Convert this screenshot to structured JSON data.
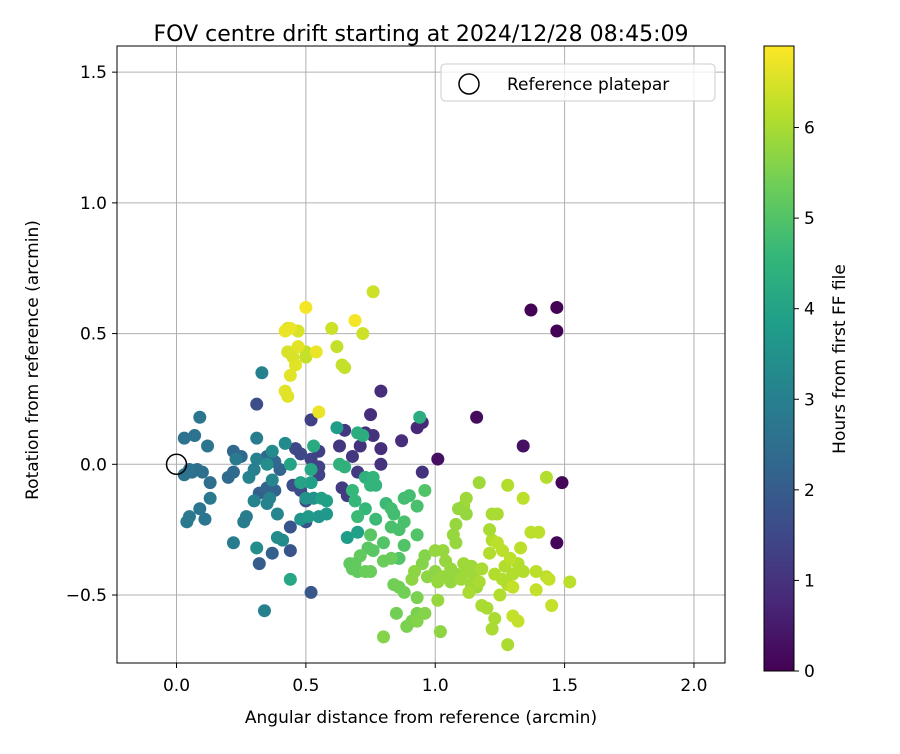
{
  "chart_data": {
    "type": "scatter",
    "title": "FOV centre drift starting at 2024/12/28 08:45:09",
    "xlabel": "Angular distance from reference (arcmin)",
    "ylabel": "Rotation from reference (arcmin)",
    "xlim": [
      -0.23,
      2.12
    ],
    "ylim": [
      -0.76,
      1.6
    ],
    "x_ticks": [
      0.0,
      0.5,
      1.0,
      1.5,
      2.0
    ],
    "x_tick_labels": [
      "0.0",
      "0.5",
      "1.0",
      "1.5",
      "2.0"
    ],
    "y_ticks": [
      -0.5,
      0.0,
      0.5,
      1.0,
      1.5
    ],
    "y_tick_labels": [
      "−0.5",
      "0.0",
      "0.5",
      "1.0",
      "1.5"
    ],
    "grid": true,
    "legend": {
      "placement": "top-right",
      "entries": [
        {
          "label": "Reference platepar",
          "marker": "open-circle"
        }
      ]
    },
    "reference_point": {
      "x": 0.0,
      "y": 0.0
    },
    "colorbar": {
      "label": "Hours from first FF file",
      "colormap": "viridis",
      "min": 0,
      "max": 6.9,
      "ticks": [
        0,
        1,
        2,
        3,
        4,
        5,
        6
      ],
      "tick_labels": [
        "0",
        "1",
        "2",
        "3",
        "4",
        "5",
        "6"
      ]
    },
    "colormap_stops": [
      "#440154",
      "#482878",
      "#3e4a89",
      "#31688e",
      "#26828e",
      "#1f9e89",
      "#35b779",
      "#6ece58",
      "#b5de2b",
      "#fde725"
    ],
    "points": [
      [
        1.37,
        0.59,
        0.05
      ],
      [
        1.47,
        0.6,
        0.05
      ],
      [
        1.47,
        0.51,
        0.05
      ],
      [
        1.49,
        -0.07,
        0.1
      ],
      [
        1.47,
        -0.3,
        0.1
      ],
      [
        1.16,
        0.18,
        0.2
      ],
      [
        1.34,
        0.07,
        0.3
      ],
      [
        1.01,
        0.02,
        0.3
      ],
      [
        0.95,
        0.16,
        0.8
      ],
      [
        0.93,
        0.14,
        0.8
      ],
      [
        0.79,
        0.28,
        0.9
      ],
      [
        0.75,
        0.19,
        0.9
      ],
      [
        0.87,
        0.09,
        0.9
      ],
      [
        0.79,
        0.06,
        0.9
      ],
      [
        0.79,
        0.0,
        1.0
      ],
      [
        0.73,
        0.12,
        1.0
      ],
      [
        0.76,
        0.11,
        1.0
      ],
      [
        0.71,
        0.07,
        1.0
      ],
      [
        0.65,
        0.13,
        1.1
      ],
      [
        0.63,
        0.07,
        1.1
      ],
      [
        0.68,
        0.03,
        1.1
      ],
      [
        0.7,
        -0.03,
        1.2
      ],
      [
        0.64,
        -0.09,
        1.2
      ],
      [
        0.66,
        -0.12,
        1.2
      ],
      [
        0.95,
        -0.03,
        1.0
      ],
      [
        0.52,
        0.17,
        1.3
      ],
      [
        0.55,
        0.05,
        1.3
      ],
      [
        0.55,
        -0.01,
        1.4
      ],
      [
        0.55,
        -0.04,
        1.4
      ],
      [
        0.52,
        0.02,
        1.4
      ],
      [
        0.46,
        0.06,
        1.5
      ],
      [
        0.48,
        0.04,
        1.5
      ],
      [
        0.45,
        -0.08,
        1.6
      ],
      [
        0.48,
        -0.1,
        1.6
      ],
      [
        0.5,
        -0.14,
        1.6
      ],
      [
        0.5,
        -0.22,
        1.7
      ],
      [
        0.44,
        -0.24,
        1.8
      ],
      [
        0.44,
        -0.33,
        1.8
      ],
      [
        0.31,
        0.23,
        1.6
      ],
      [
        0.52,
        -0.49,
        1.9
      ],
      [
        0.32,
        -0.38,
        2.0
      ],
      [
        0.37,
        -0.34,
        2.1
      ],
      [
        0.32,
        -0.11,
        2.1
      ],
      [
        0.35,
        -0.09,
        2.2
      ],
      [
        0.38,
        -0.1,
        2.2
      ],
      [
        0.4,
        -0.02,
        2.2
      ],
      [
        0.35,
        0.03,
        2.3
      ],
      [
        0.38,
        0.01,
        2.3
      ],
      [
        0.22,
        0.05,
        2.3
      ],
      [
        0.25,
        0.03,
        2.4
      ],
      [
        0.2,
        -0.05,
        2.4
      ],
      [
        0.22,
        -0.03,
        2.4
      ],
      [
        0.13,
        -0.07,
        2.5
      ],
      [
        0.1,
        -0.03,
        2.5
      ],
      [
        0.08,
        -0.02,
        2.5
      ],
      [
        0.06,
        -0.03,
        2.5
      ],
      [
        0.03,
        -0.04,
        2.6
      ],
      [
        0.05,
        -0.02,
        2.6
      ],
      [
        0.03,
        0.1,
        2.6
      ],
      [
        0.07,
        0.11,
        2.6
      ],
      [
        0.09,
        0.18,
        2.7
      ],
      [
        0.12,
        0.07,
        2.7
      ],
      [
        0.09,
        -0.17,
        2.7
      ],
      [
        0.11,
        -0.21,
        2.7
      ],
      [
        0.13,
        -0.13,
        2.8
      ],
      [
        0.05,
        -0.2,
        2.8
      ],
      [
        0.04,
        -0.22,
        2.8
      ],
      [
        0.23,
        0.02,
        2.8
      ],
      [
        0.22,
        -0.3,
        2.9
      ],
      [
        0.27,
        -0.2,
        2.9
      ],
      [
        0.26,
        -0.22,
        2.9
      ],
      [
        0.31,
        0.1,
        2.9
      ],
      [
        0.33,
        0.35,
        3.0
      ],
      [
        0.34,
        -0.56,
        3.0
      ],
      [
        0.31,
        0.02,
        3.0
      ],
      [
        0.3,
        -0.02,
        3.0
      ],
      [
        0.28,
        -0.05,
        3.1
      ],
      [
        0.3,
        -0.14,
        3.1
      ],
      [
        0.35,
        -0.15,
        3.1
      ],
      [
        0.36,
        -0.13,
        3.1
      ],
      [
        0.37,
        -0.06,
        3.2
      ],
      [
        0.39,
        -0.19,
        3.2
      ],
      [
        0.39,
        -0.28,
        3.3
      ],
      [
        0.41,
        -0.29,
        3.3
      ],
      [
        0.42,
        0.08,
        3.3
      ],
      [
        0.37,
        0.05,
        3.3
      ],
      [
        0.35,
        0.0,
        3.4
      ],
      [
        0.31,
        -0.32,
        3.4
      ],
      [
        0.5,
        -0.13,
        3.5
      ],
      [
        0.53,
        -0.13,
        3.5
      ],
      [
        0.48,
        -0.21,
        3.6
      ],
      [
        0.55,
        -0.2,
        3.6
      ],
      [
        0.58,
        -0.19,
        3.7
      ],
      [
        0.51,
        -0.2,
        3.7
      ],
      [
        0.62,
        0.14,
        3.8
      ],
      [
        0.66,
        -0.28,
        3.8
      ],
      [
        0.7,
        -0.26,
        3.9
      ],
      [
        0.58,
        -0.14,
        3.9
      ],
      [
        0.56,
        -0.13,
        3.9
      ],
      [
        0.52,
        -0.07,
        3.9
      ],
      [
        0.48,
        -0.07,
        4.0
      ],
      [
        0.44,
        0.0,
        4.0
      ],
      [
        0.44,
        -0.44,
        4.1
      ],
      [
        0.52,
        -0.02,
        4.1
      ],
      [
        0.53,
        0.07,
        4.2
      ],
      [
        0.7,
        0.12,
        4.3
      ],
      [
        0.72,
        0.11,
        4.3
      ],
      [
        0.94,
        0.18,
        4.3
      ],
      [
        0.63,
        0.0,
        4.4
      ],
      [
        0.65,
        -0.01,
        4.4
      ],
      [
        0.73,
        -0.05,
        4.4
      ],
      [
        0.75,
        -0.08,
        4.5
      ],
      [
        0.76,
        -0.05,
        4.5
      ],
      [
        0.77,
        -0.08,
        4.5
      ],
      [
        0.68,
        -0.1,
        4.6
      ],
      [
        0.69,
        -0.14,
        4.6
      ],
      [
        0.73,
        -0.17,
        4.6
      ],
      [
        0.7,
        -0.2,
        4.7
      ],
      [
        0.77,
        -0.21,
        4.7
      ],
      [
        0.81,
        -0.15,
        4.7
      ],
      [
        0.83,
        -0.17,
        4.8
      ],
      [
        0.84,
        -0.19,
        4.8
      ],
      [
        0.88,
        -0.13,
        4.8
      ],
      [
        0.9,
        -0.12,
        4.8
      ],
      [
        0.93,
        -0.16,
        4.9
      ],
      [
        0.88,
        -0.22,
        4.9
      ],
      [
        0.86,
        -0.25,
        4.9
      ],
      [
        0.83,
        -0.24,
        4.9
      ],
      [
        0.93,
        -0.27,
        5.0
      ],
      [
        0.88,
        -0.31,
        5.0
      ],
      [
        0.86,
        -0.36,
        5.0
      ],
      [
        0.8,
        -0.3,
        5.0
      ],
      [
        0.75,
        -0.27,
        5.1
      ],
      [
        0.74,
        -0.32,
        5.1
      ],
      [
        0.76,
        -0.33,
        5.1
      ],
      [
        0.71,
        -0.35,
        5.2
      ],
      [
        0.69,
        -0.38,
        5.2
      ],
      [
        0.67,
        -0.38,
        5.2
      ],
      [
        0.68,
        -0.4,
        5.2
      ],
      [
        0.7,
        -0.41,
        5.2
      ],
      [
        0.73,
        -0.41,
        5.3
      ],
      [
        0.75,
        -0.41,
        5.3
      ],
      [
        0.8,
        -0.37,
        5.3
      ],
      [
        0.83,
        -0.36,
        5.3
      ],
      [
        0.84,
        -0.46,
        5.4
      ],
      [
        0.86,
        -0.47,
        5.4
      ],
      [
        0.88,
        -0.49,
        5.4
      ],
      [
        0.85,
        -0.57,
        5.4
      ],
      [
        0.91,
        -0.6,
        5.5
      ],
      [
        0.89,
        -0.62,
        5.5
      ],
      [
        0.93,
        -0.51,
        5.5
      ],
      [
        0.93,
        -0.57,
        5.5
      ],
      [
        0.96,
        -0.57,
        5.6
      ],
      [
        0.93,
        -0.6,
        5.6
      ],
      [
        0.96,
        -0.35,
        5.6
      ],
      [
        0.95,
        -0.38,
        5.6
      ],
      [
        0.97,
        -0.43,
        5.7
      ],
      [
        0.92,
        -0.41,
        5.7
      ],
      [
        0.91,
        -0.44,
        5.7
      ],
      [
        0.96,
        -0.1,
        5.0
      ],
      [
        1.0,
        -0.41,
        5.7
      ],
      [
        1.01,
        -0.45,
        5.8
      ],
      [
        1.01,
        -0.52,
        5.8
      ],
      [
        1.0,
        -0.33,
        5.8
      ],
      [
        1.03,
        -0.33,
        5.8
      ],
      [
        1.04,
        -0.37,
        5.8
      ],
      [
        1.06,
        -0.4,
        5.8
      ],
      [
        1.08,
        -0.42,
        5.8
      ],
      [
        1.06,
        -0.45,
        5.8
      ],
      [
        1.1,
        -0.44,
        5.9
      ],
      [
        1.12,
        -0.41,
        5.9
      ],
      [
        1.14,
        -0.46,
        5.9
      ],
      [
        1.11,
        -0.38,
        5.9
      ],
      [
        1.14,
        -0.39,
        5.9
      ],
      [
        1.15,
        -0.43,
        5.9
      ],
      [
        1.16,
        -0.47,
        5.9
      ],
      [
        1.17,
        -0.45,
        6.0
      ],
      [
        1.18,
        -0.4,
        6.0
      ],
      [
        1.13,
        -0.49,
        6.0
      ],
      [
        1.18,
        -0.54,
        6.0
      ],
      [
        1.2,
        -0.55,
        6.0
      ],
      [
        1.23,
        -0.59,
        6.0
      ],
      [
        1.22,
        -0.63,
        6.0
      ],
      [
        1.28,
        -0.69,
        6.0
      ],
      [
        1.25,
        -0.5,
        6.1
      ],
      [
        1.28,
        -0.46,
        6.1
      ],
      [
        1.3,
        -0.42,
        6.1
      ],
      [
        1.32,
        -0.38,
        6.1
      ],
      [
        1.34,
        -0.41,
        6.1
      ],
      [
        1.27,
        -0.39,
        6.1
      ],
      [
        1.26,
        -0.44,
        6.1
      ],
      [
        1.23,
        -0.42,
        6.1
      ],
      [
        1.21,
        -0.34,
        6.1
      ],
      [
        1.22,
        -0.29,
        6.1
      ],
      [
        1.24,
        -0.3,
        6.2
      ],
      [
        1.26,
        -0.33,
        6.2
      ],
      [
        1.29,
        -0.36,
        6.2
      ],
      [
        1.33,
        -0.32,
        6.2
      ],
      [
        1.37,
        -0.26,
        6.2
      ],
      [
        1.4,
        -0.26,
        6.2
      ],
      [
        1.39,
        -0.41,
        6.2
      ],
      [
        1.43,
        -0.43,
        6.2
      ],
      [
        1.44,
        -0.44,
        6.3
      ],
      [
        1.39,
        -0.48,
        6.3
      ],
      [
        1.45,
        -0.54,
        6.3
      ],
      [
        1.3,
        -0.58,
        6.3
      ],
      [
        1.32,
        -0.6,
        6.3
      ],
      [
        1.3,
        -0.47,
        6.3
      ],
      [
        1.34,
        -0.13,
        6.2
      ],
      [
        1.43,
        -0.05,
        6.1
      ],
      [
        1.52,
        -0.45,
        6.2
      ],
      [
        1.28,
        -0.08,
        6.1
      ],
      [
        1.22,
        -0.19,
        6.0
      ],
      [
        1.24,
        -0.19,
        6.0
      ],
      [
        1.21,
        -0.25,
        6.0
      ],
      [
        1.17,
        -0.07,
        5.9
      ],
      [
        1.12,
        -0.13,
        5.9
      ],
      [
        1.11,
        -0.16,
        5.9
      ],
      [
        1.12,
        -0.19,
        5.8
      ],
      [
        1.09,
        -0.17,
        5.8
      ],
      [
        1.08,
        -0.23,
        5.8
      ],
      [
        1.07,
        -0.27,
        5.8
      ],
      [
        1.08,
        -0.3,
        5.8
      ],
      [
        1.03,
        -0.43,
        5.8
      ],
      [
        1.02,
        -0.64,
        5.7
      ],
      [
        0.8,
        -0.66,
        5.6
      ],
      [
        0.5,
        0.43,
        6.3
      ],
      [
        0.5,
        0.41,
        6.3
      ],
      [
        0.62,
        0.45,
        6.3
      ],
      [
        0.64,
        0.38,
        6.3
      ],
      [
        0.65,
        0.37,
        6.3
      ],
      [
        0.72,
        0.5,
        6.4
      ],
      [
        0.76,
        0.66,
        6.4
      ],
      [
        0.6,
        0.52,
        6.4
      ],
      [
        0.47,
        0.51,
        6.5
      ],
      [
        0.43,
        0.52,
        6.5
      ],
      [
        0.45,
        0.41,
        6.5
      ],
      [
        0.43,
        0.43,
        6.5
      ],
      [
        0.47,
        0.45,
        6.6
      ],
      [
        0.44,
        0.34,
        6.6
      ],
      [
        0.46,
        0.38,
        6.6
      ],
      [
        0.42,
        0.28,
        6.6
      ],
      [
        0.43,
        0.26,
        6.6
      ],
      [
        0.44,
        0.52,
        6.7
      ],
      [
        0.42,
        0.51,
        6.7
      ],
      [
        0.54,
        0.43,
        6.7
      ],
      [
        0.55,
        0.2,
        6.7
      ],
      [
        0.5,
        0.6,
        6.8
      ],
      [
        0.69,
        0.55,
        6.8
      ]
    ]
  }
}
